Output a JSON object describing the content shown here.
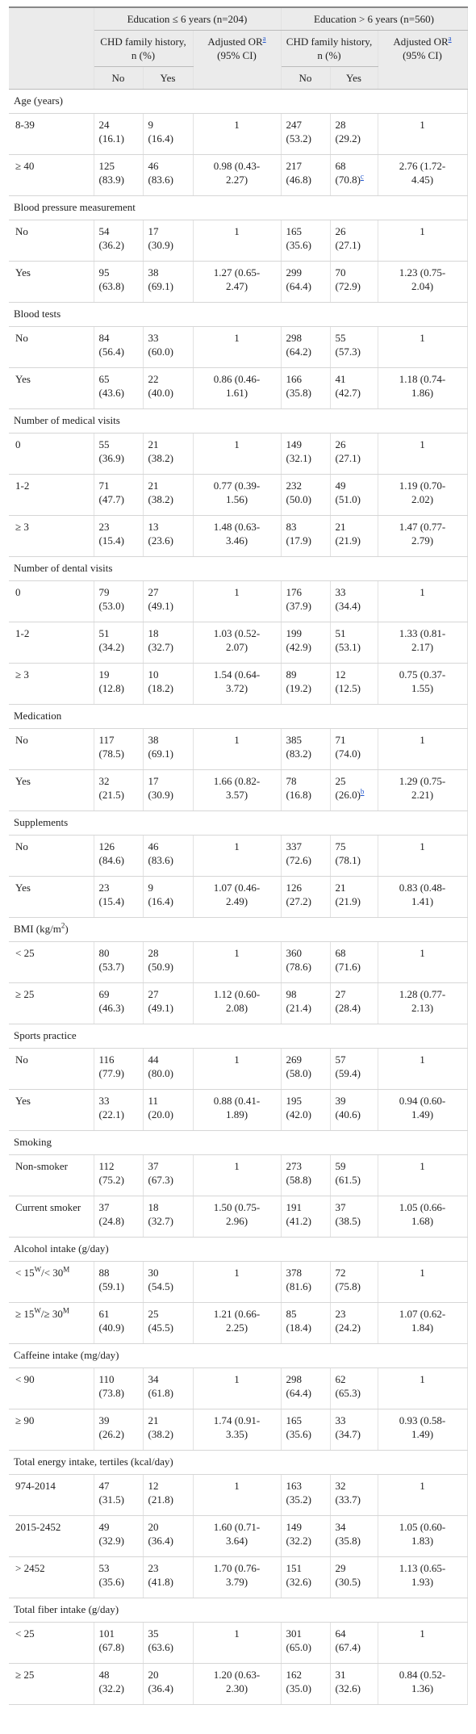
{
  "table": {
    "groups": [
      "Education ≤ 6 years (n=204)",
      "Education > 6 years (n=560)"
    ],
    "subheaders": [
      "CHD family history, n (%)",
      [
        "Adjusted OR",
        {
          "ref": "a"
        },
        " (95% CI)"
      ]
    ],
    "subsubheaders": [
      "No",
      "Yes"
    ],
    "sections": [
      {
        "title": "Age (years)",
        "rows": [
          {
            "label": "8-39",
            "cells": [
              "24 (16.1)",
              "9 (16.4)",
              "1",
              "247 (53.2)",
              "28 (29.2)",
              "1"
            ]
          },
          {
            "label": "≥ 40",
            "cells": [
              "125 (83.9)",
              "46 (83.6)",
              "0.98 (0.43-2.27)",
              "217 (46.8)",
              [
                "68 (70.8)",
                {
                  "ref": "c"
                }
              ],
              "2.76 (1.72-4.45)"
            ]
          }
        ]
      },
      {
        "title": "Blood pressure measurement",
        "rows": [
          {
            "label": "No",
            "cells": [
              "54 (36.2)",
              "17 (30.9)",
              "1",
              "165 (35.6)",
              "26 (27.1)",
              "1"
            ]
          },
          {
            "label": "Yes",
            "cells": [
              "95 (63.8)",
              "38 (69.1)",
              "1.27 (0.65-2.47)",
              "299 (64.4)",
              "70 (72.9)",
              "1.23 (0.75-2.04)"
            ]
          }
        ]
      },
      {
        "title": "Blood tests",
        "rows": [
          {
            "label": "No",
            "cells": [
              "84 (56.4)",
              "33 (60.0)",
              "1",
              "298 (64.2)",
              "55 (57.3)",
              "1"
            ]
          },
          {
            "label": "Yes",
            "cells": [
              "65 (43.6)",
              "22 (40.0)",
              "0.86 (0.46-1.61)",
              "166 (35.8)",
              "41 (42.7)",
              "1.18 (0.74-1.86)"
            ]
          }
        ]
      },
      {
        "title": "Number of medical visits",
        "rows": [
          {
            "label": "0",
            "cells": [
              "55 (36.9)",
              "21 (38.2)",
              "1",
              "149 (32.1)",
              "26 (27.1)",
              "1"
            ]
          },
          {
            "label": "1-2",
            "cells": [
              "71 (47.7)",
              "21 (38.2)",
              "0.77 (0.39-1.56)",
              "232 (50.0)",
              "49 (51.0)",
              "1.19 (0.70-2.02)"
            ]
          },
          {
            "label": "≥ 3",
            "cells": [
              "23 (15.4)",
              "13 (23.6)",
              "1.48 (0.63-3.46)",
              "83 (17.9)",
              "21 (21.9)",
              "1.47 (0.77-2.79)"
            ]
          }
        ]
      },
      {
        "title": "Number of dental visits",
        "rows": [
          {
            "label": "0",
            "cells": [
              "79 (53.0)",
              "27 (49.1)",
              "1",
              "176 (37.9)",
              "33 (34.4)",
              "1"
            ]
          },
          {
            "label": "1-2",
            "cells": [
              "51 (34.2)",
              "18 (32.7)",
              "1.03 (0.52-2.07)",
              "199 (42.9)",
              "51 (53.1)",
              "1.33 (0.81-2.17)"
            ]
          },
          {
            "label": "≥ 3",
            "cells": [
              "19 (12.8)",
              "10 (18.2)",
              "1.54 (0.64-3.72)",
              "89 (19.2)",
              "12 (12.5)",
              "0.75 (0.37-1.55)"
            ]
          }
        ]
      },
      {
        "title": "Medication",
        "rows": [
          {
            "label": "No",
            "cells": [
              "117 (78.5)",
              "38 (69.1)",
              "1",
              "385 (83.2)",
              "71 (74.0)",
              "1"
            ]
          },
          {
            "label": "Yes",
            "cells": [
              "32 (21.5)",
              "17 (30.9)",
              "1.66 (0.82-3.57)",
              "78 (16.8)",
              [
                "25 (26.0)",
                {
                  "ref": "b"
                }
              ],
              "1.29 (0.75-2.21)"
            ]
          }
        ]
      },
      {
        "title": "Supplements",
        "rows": [
          {
            "label": "No",
            "cells": [
              "126 (84.6)",
              "46 (83.6)",
              "1",
              "337 (72.6)",
              "75 (78.1)",
              "1"
            ]
          },
          {
            "label": "Yes",
            "cells": [
              "23 (15.4)",
              "9 (16.4)",
              "1.07 (0.46-2.49)",
              "126 (27.2)",
              "21 (21.9)",
              "0.83 (0.48-1.41)"
            ]
          }
        ]
      },
      {
        "title": [
          "BMI (kg/m",
          {
            "sup": "2"
          },
          ")"
        ],
        "rows": [
          {
            "label": "< 25",
            "cells": [
              "80 (53.7)",
              "28 (50.9)",
              "1",
              "360 (78.6)",
              "68 (71.6)",
              "1"
            ]
          },
          {
            "label": "≥ 25",
            "cells": [
              "69 (46.3)",
              "27 (49.1)",
              "1.12 (0.60-2.08)",
              "98 (21.4)",
              "27 (28.4)",
              "1.28 (0.77-2.13)"
            ]
          }
        ]
      },
      {
        "title": "Sports practice",
        "rows": [
          {
            "label": "No",
            "cells": [
              "116 (77.9)",
              "44 (80.0)",
              "1",
              "269 (58.0)",
              "57 (59.4)",
              "1"
            ]
          },
          {
            "label": "Yes",
            "cells": [
              "33 (22.1)",
              "11 (20.0)",
              "0.88 (0.41-1.89)",
              "195 (42.0)",
              "39 (40.6)",
              "0.94 (0.60-1.49)"
            ]
          }
        ]
      },
      {
        "title": "Smoking",
        "rows": [
          {
            "label": "Non-smoker",
            "cells": [
              "112 (75.2)",
              "37 (67.3)",
              "1",
              "273 (58.8)",
              "59 (61.5)",
              "1"
            ]
          },
          {
            "label": "Current smoker",
            "cells": [
              "37 (24.8)",
              "18 (32.7)",
              "1.50 (0.75-2.96)",
              "191 (41.2)",
              "37 (38.5)",
              "1.05 (0.66-1.68)"
            ]
          }
        ]
      },
      {
        "title": "Alcohol intake (g/day)",
        "rows": [
          {
            "label": [
              "< 15",
              {
                "sup": "W"
              },
              "/< 30",
              {
                "sup": "M"
              }
            ],
            "cells": [
              "88 (59.1)",
              "30 (54.5)",
              "1",
              "378 (81.6)",
              "72 (75.8)",
              "1"
            ]
          },
          {
            "label": [
              "≥ 15",
              {
                "sup": "W"
              },
              "/≥ 30",
              {
                "sup": "M"
              }
            ],
            "cells": [
              "61 (40.9)",
              "25 (45.5)",
              "1.21 (0.66-2.25)",
              "85 (18.4)",
              "23 (24.2)",
              "1.07 (0.62-1.84)"
            ]
          }
        ]
      },
      {
        "title": "Caffeine intake (mg/day)",
        "rows": [
          {
            "label": "< 90",
            "cells": [
              "110 (73.8)",
              "34 (61.8)",
              "1",
              "298 (64.4)",
              "62 (65.3)",
              "1"
            ]
          },
          {
            "label": "≥ 90",
            "cells": [
              "39 (26.2)",
              "21 (38.2)",
              "1.74 (0.91-3.35)",
              "165 (35.6)",
              "33 (34.7)",
              "0.93 (0.58-1.49)"
            ]
          }
        ]
      },
      {
        "title": "Total energy intake, tertiles (kcal/day)",
        "rows": [
          {
            "label": "974-2014",
            "cells": [
              "47 (31.5)",
              "12 (21.8)",
              "1",
              "163 (35.2)",
              "32 (33.7)",
              "1"
            ]
          },
          {
            "label": "2015-2452",
            "cells": [
              "49 (32.9)",
              "20 (36.4)",
              "1.60 (0.71-3.64)",
              "149 (32.2)",
              "34 (35.8)",
              "1.05 (0.60-1.83)"
            ]
          },
          {
            "label": "> 2452",
            "cells": [
              "53 (35.6)",
              "23 (41.8)",
              "1.70 (0.76-3.79)",
              "151 (32.6)",
              "29 (30.5)",
              "1.13 (0.65-1.93)"
            ]
          }
        ]
      },
      {
        "title": "Total fiber intake (g/day)",
        "rows": [
          {
            "label": "< 25",
            "cells": [
              "101 (67.8)",
              "35 (63.6)",
              "1",
              "301 (65.0)",
              "64 (67.4)",
              "1"
            ]
          },
          {
            "label": "≥ 25",
            "cells": [
              "48 (32.2)",
              "20 (36.4)",
              "1.20 (0.63-2.30)",
              "162 (35.0)",
              "31 (32.6)",
              "0.84 (0.52-1.36)"
            ]
          }
        ]
      }
    ]
  }
}
